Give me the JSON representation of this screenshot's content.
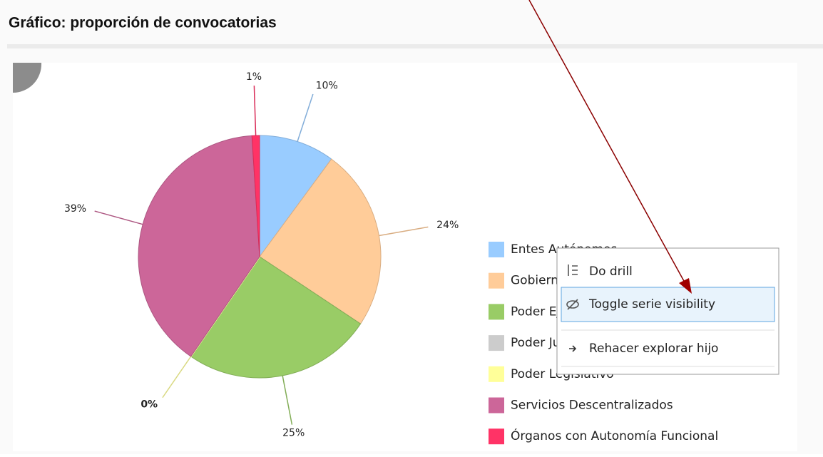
{
  "chart_data": {
    "type": "pie",
    "title": "Gráfico: proporción de convocatorias",
    "categories": [
      "Entes Autónomos",
      "Gobierno Central",
      "Poder Ejecutivo",
      "Poder Judicial",
      "Poder Legislativo",
      "Servicios Descentralizados",
      "Órganos con Autonomía Funcional"
    ],
    "values": [
      10,
      24,
      25,
      0,
      0,
      39,
      1
    ],
    "value_labels": [
      "10%",
      "24%",
      "25%",
      null,
      "0%",
      "39%",
      "1%"
    ],
    "colors": [
      "#99ccff",
      "#ffcc99",
      "#99cc66",
      "#cccccc",
      "#ffff99",
      "#cc6699",
      "#ff3366"
    ]
  },
  "context_menu": {
    "items": [
      "Do drill",
      "Toggle serie visibility",
      "Rehacer explorar hijo"
    ]
  }
}
